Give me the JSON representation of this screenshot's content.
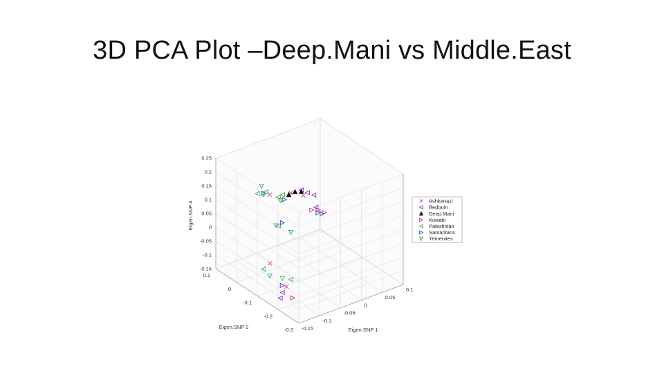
{
  "slide": {
    "title": "3D PCA Plot –Deep.Mani vs Middle.East"
  },
  "chart_data": {
    "type": "scatter",
    "dimensions": 3,
    "title": "",
    "xlabel": "Eigen.SNP 1",
    "ylabel": "Eigen.SNP 2",
    "zlabel": "Eigen.SNP 4",
    "xlim": [
      -0.15,
      0.1
    ],
    "ylim": [
      -0.3,
      0.1
    ],
    "zlim": [
      -0.15,
      0.25
    ],
    "x_ticks": [
      "-0.15",
      "-0.1",
      "-0.05",
      "0",
      "0.05",
      "0.1"
    ],
    "y_ticks": [
      "0.1",
      "0",
      "-0.1",
      "-0.2",
      "-0.3"
    ],
    "z_ticks": [
      "0.25",
      "0.2",
      "0.15",
      "0.1",
      "0.05",
      "0",
      "-0.05",
      "-0.1",
      "-0.15"
    ],
    "grid": true,
    "legend_position": "right",
    "series": [
      {
        "name": "Ashkenazi",
        "marker": "x",
        "color": "#d0409a",
        "points": [
          [
            -0.02,
            0.0,
            0.1
          ],
          [
            0.0,
            -0.02,
            0.09
          ],
          [
            -0.1,
            -0.06,
            -0.08
          ],
          [
            -0.12,
            -0.1,
            0.2
          ],
          [
            -0.09,
            -0.12,
            -0.14
          ]
        ]
      },
      {
        "name": "Bedouin",
        "marker": "<",
        "color": "#8a2bd8",
        "points": [
          [
            0.02,
            0.0,
            0.08
          ],
          [
            0.03,
            -0.01,
            0.07
          ],
          [
            0.01,
            0.01,
            0.09
          ],
          [
            -0.11,
            -0.14,
            -0.14
          ],
          [
            -0.12,
            -0.15,
            -0.15
          ],
          [
            0.05,
            0.02,
            0.0
          ]
        ]
      },
      {
        "name": "Deep.Mani",
        "marker": "^",
        "color": "#111111",
        "points": [
          [
            -0.01,
            0.0,
            0.1
          ],
          [
            0.0,
            -0.01,
            0.1
          ],
          [
            -0.02,
            0.01,
            0.09
          ]
        ]
      },
      {
        "name": "Kuwaiti",
        "marker": ">",
        "color": "#cc2f8f",
        "points": [
          [
            0.06,
            0.03,
            -0.02
          ],
          [
            0.07,
            0.02,
            -0.03
          ],
          [
            0.05,
            0.04,
            -0.02
          ],
          [
            -0.1,
            -0.17,
            -0.15
          ]
        ]
      },
      {
        "name": "Palestinian",
        "marker": "<",
        "color": "#3aa84a",
        "points": [
          [
            -0.12,
            -0.08,
            0.2
          ],
          [
            -0.13,
            -0.06,
            0.19
          ],
          [
            -0.1,
            -0.1,
            0.18
          ],
          [
            -0.11,
            -0.05,
            -0.1
          ],
          [
            -0.08,
            -0.12,
            -0.12
          ],
          [
            -0.03,
            0.02,
            0.09
          ],
          [
            -0.07,
            -0.04,
            0.03
          ]
        ]
      },
      {
        "name": "Samaritans",
        "marker": ">",
        "color": "#3747c8",
        "points": [
          [
            -0.12,
            -0.07,
            0.19
          ],
          [
            -0.09,
            -0.11,
            0.17
          ],
          [
            -0.1,
            -0.12,
            -0.13
          ],
          [
            0.06,
            0.03,
            -0.03
          ],
          [
            0.07,
            0.03,
            -0.04
          ],
          [
            -0.05,
            -0.02,
            0.02
          ]
        ]
      },
      {
        "name": "Yemenites",
        "marker": "v",
        "color": "#3aa84a",
        "points": [
          [
            -0.12,
            -0.06,
            0.21
          ],
          [
            -0.13,
            -0.09,
            0.2
          ],
          [
            -0.11,
            -0.08,
            -0.11
          ],
          [
            -0.09,
            -0.1,
            -0.12
          ],
          [
            -0.04,
            0.01,
            0.08
          ],
          [
            -0.08,
            -0.05,
            0.04
          ],
          [
            -0.06,
            -0.08,
            0.02
          ]
        ]
      }
    ]
  }
}
